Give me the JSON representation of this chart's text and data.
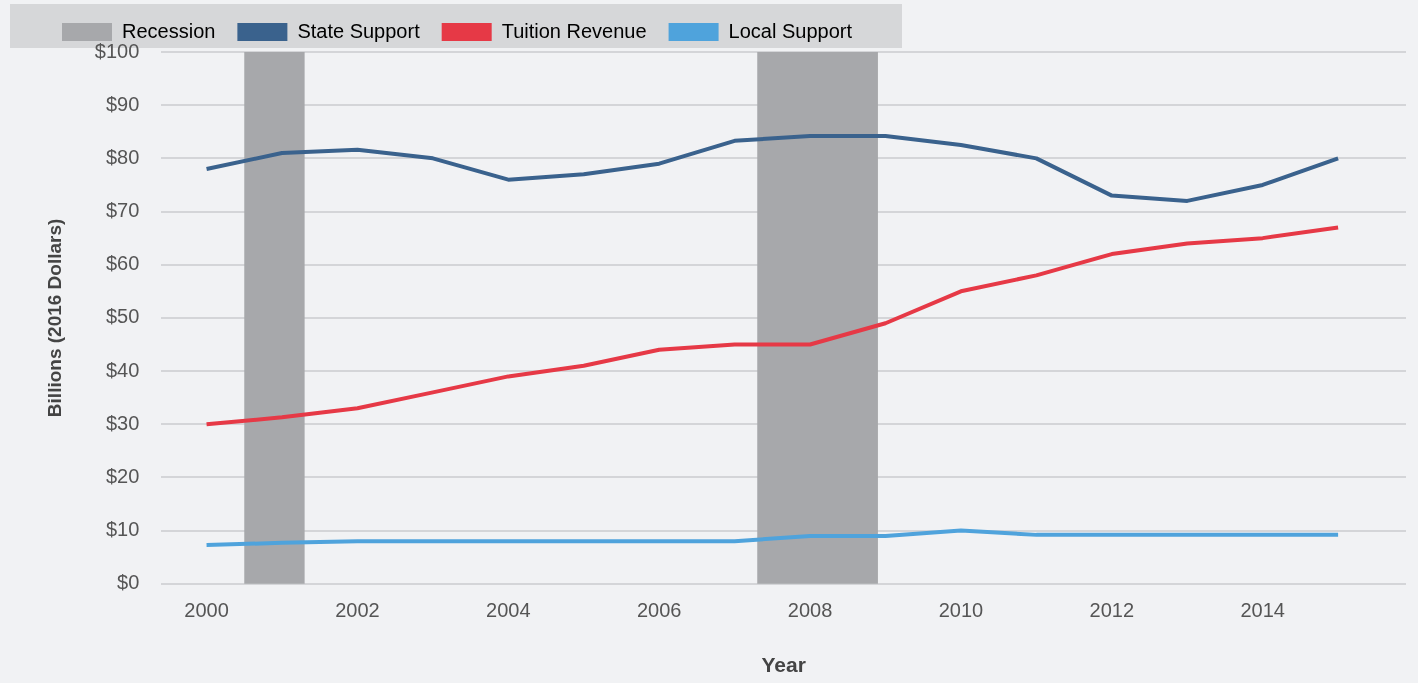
{
  "chart_data": {
    "type": "line",
    "xlabel": "Year",
    "ylabel": "Billions (2016 Dollars)",
    "x": [
      2000,
      2001,
      2002,
      2003,
      2004,
      2005,
      2006,
      2007,
      2008,
      2009,
      2010,
      2011,
      2012,
      2013,
      2014,
      2015
    ],
    "series": [
      {
        "name": "State Support",
        "color": "#3a628d",
        "values": [
          78,
          81,
          81.6,
          80,
          76,
          77,
          79,
          83.3,
          84.2,
          84.2,
          82.5,
          80,
          73,
          72,
          75,
          80
        ]
      },
      {
        "name": "Tuition Revenue",
        "color": "#e63946",
        "values": [
          30,
          31.3,
          33,
          36,
          39,
          41,
          44,
          45,
          45,
          49,
          55,
          58,
          62,
          64,
          65,
          67
        ]
      },
      {
        "name": "Local Support",
        "color": "#4fa3dc",
        "values": [
          7.3,
          7.7,
          8,
          8,
          8,
          8,
          8,
          8,
          9,
          9,
          10,
          9.2,
          9.2,
          9.2,
          9.2,
          9.2
        ]
      }
    ],
    "bands": [
      {
        "axis": "x",
        "from": 2000.5,
        "to": 2001.3,
        "label": "Recession",
        "color": "#a7a8ab"
      },
      {
        "axis": "x",
        "from": 2007.3,
        "to": 2008.9,
        "color": "#a7a8ab"
      }
    ],
    "xlim": [
      1999.4,
      2015.9
    ],
    "xticks": [
      2000,
      2002,
      2004,
      2006,
      2008,
      2010,
      2012,
      2014
    ],
    "ylim": [
      0,
      100
    ],
    "yticks": [
      {
        "value": 0,
        "label": "$0"
      },
      {
        "value": 10,
        "label": "$10"
      },
      {
        "value": 20,
        "label": "$20"
      },
      {
        "value": 30,
        "label": "$30"
      },
      {
        "value": 40,
        "label": "$40"
      },
      {
        "value": 50,
        "label": "$50"
      },
      {
        "value": 60,
        "label": "$60"
      },
      {
        "value": 70,
        "label": "$70"
      },
      {
        "value": 80,
        "label": "$80"
      },
      {
        "value": 90,
        "label": "$90"
      },
      {
        "value": 100,
        "label": "$100"
      }
    ],
    "grid": "y",
    "legend": "top left",
    "marker": "none",
    "line_style": "solid"
  }
}
